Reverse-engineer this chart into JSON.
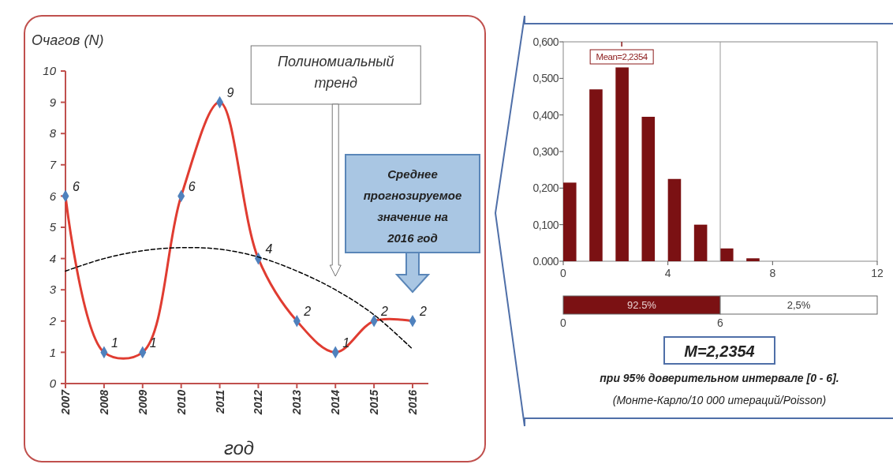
{
  "chart_data": [
    {
      "type": "line",
      "xlabel": "год",
      "ylabel": "Очагов (N)",
      "categories": [
        "2007",
        "2008",
        "2009",
        "2010",
        "2011",
        "2012",
        "2013",
        "2014",
        "2015",
        "2016"
      ],
      "series": [
        {
          "color": "#e03c31",
          "values": [
            6,
            1,
            1,
            6,
            9,
            4,
            2,
            1,
            2,
            2
          ],
          "value_labels": [
            "6",
            "1",
            "1",
            "6",
            "9",
            "4",
            "2",
            "1",
            "2",
            "2"
          ]
        },
        {
          "color": "#000000",
          "values": [
            3.6,
            4.0,
            4.25,
            4.35,
            4.3,
            4.05,
            3.6,
            3.0,
            2.2,
            1.1
          ],
          "line_style": "dashed",
          "marker": "none"
        }
      ],
      "ylim": [
        0,
        10
      ],
      "yticks": [
        0,
        1,
        2,
        3,
        4,
        5,
        6,
        7,
        8,
        9,
        10
      ],
      "marker": "diamond",
      "grid": false,
      "annotations": [
        "Полиномиальный тренд",
        "Среднее прогнозируемое значение на 2016 год"
      ]
    },
    {
      "type": "bar",
      "x": [
        0.25,
        1.25,
        2.25,
        3.25,
        4.25,
        5.25,
        6.25,
        7.25
      ],
      "values": [
        0.215,
        0.47,
        0.53,
        0.395,
        0.225,
        0.1,
        0.035,
        0.008
      ],
      "color": "#7b1113",
      "xlim": [
        0,
        12
      ],
      "xticks": [
        0,
        4,
        8,
        12
      ],
      "ylim": [
        0,
        0.6
      ],
      "yticks": [
        {
          "value": 0,
          "label": "0.000"
        },
        {
          "value": 0.1,
          "label": "0,100"
        },
        {
          "value": 0.2,
          "label": "0,200"
        },
        {
          "value": 0.3,
          "label": "0,300"
        },
        {
          "value": 0.4,
          "label": "0,400"
        },
        {
          "value": 0.5,
          "label": "0,500"
        },
        {
          "value": 0.6,
          "label": "0,600"
        }
      ],
      "grid": false,
      "ref_lines": [
        {
          "axis": "x",
          "value": 6,
          "color": "#9a9a9a"
        },
        {
          "axis": "x",
          "value": 2.2354,
          "label": "Mean=2,2354",
          "color": "#8b1a1a"
        }
      ],
      "annotations": [
        "M=2,2354",
        "при 95% доверительном интервале [0 - 6].",
        "(Монте-Карло/10 000 итераций/Poisson)"
      ]
    },
    {
      "type": "bar",
      "orientation": "horizontal",
      "stacked": true,
      "categories": [
        null
      ],
      "series": [
        {
          "color": "#7b1113",
          "values": [
            6
          ]
        },
        {
          "color": "#ffffff",
          "values": [
            6
          ]
        }
      ],
      "annotations": [
        "92.5%",
        "2,5%"
      ],
      "xlim": [
        0,
        12
      ],
      "xticks": [
        0,
        6
      ],
      "tick_labels": "x"
    }
  ]
}
